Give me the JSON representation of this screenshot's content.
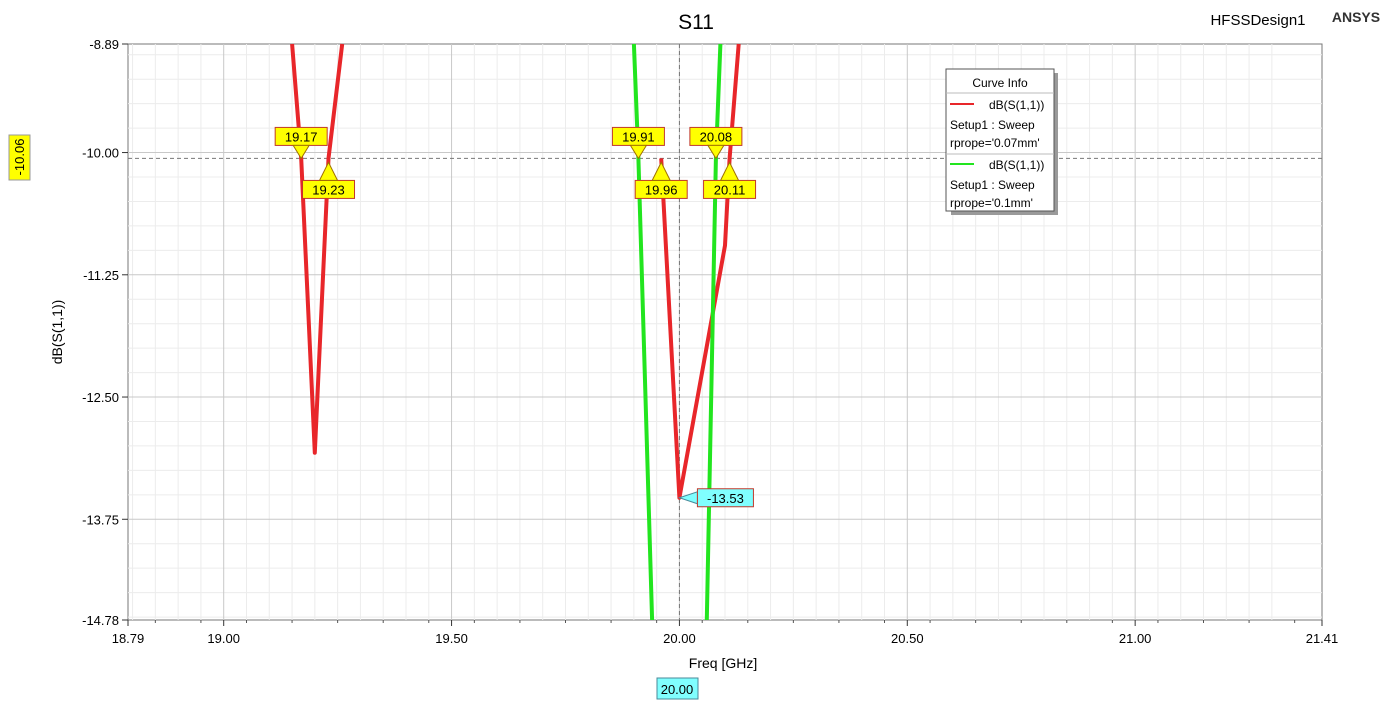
{
  "chart_data": {
    "type": "line",
    "title": "S11",
    "design_name": "HFSSDesign1",
    "brand": "ANSYS",
    "xlabel": "Freq [GHz]",
    "ylabel": "dB(S(1,1))",
    "xlim": [
      18.79,
      21.41
    ],
    "ylim": [
      -14.78,
      -8.89
    ],
    "x_ticks": [
      "18.79",
      "19.00",
      "19.50",
      "20.00",
      "20.50",
      "21.00",
      "21.41"
    ],
    "y_ticks": [
      "-8.89",
      "-10.00",
      "-11.25",
      "-12.50",
      "-13.75",
      "-14.78"
    ],
    "grid": true,
    "legend_title": "Curve Info",
    "legend_position": "top-right",
    "series": [
      {
        "name": "dB(S(1,1))",
        "legend_line2": "Setup1 : Sweep",
        "legend_line3": "rprope='0.07mm'",
        "color": "#e8262a",
        "x": [
          19.15,
          19.17,
          19.2,
          19.23,
          19.26,
          19.26,
          19.96,
          20.0,
          20.1,
          20.11,
          20.13
        ],
        "y": [
          -8.89,
          -10.06,
          -13.07,
          -10.06,
          -8.89,
          null,
          -10.06,
          -13.53,
          -10.95,
          -10.06,
          -8.89
        ]
      },
      {
        "name": "dB(S(1,1))",
        "legend_line2": "Setup1 : Sweep",
        "legend_line3": "rprope='0.1mm'",
        "color": "#22e51f",
        "x": [
          19.9,
          19.91,
          19.94,
          null,
          20.06,
          20.08,
          20.09
        ],
        "y": [
          -8.89,
          -10.06,
          -14.78,
          null,
          -14.78,
          -10.06,
          -8.89
        ]
      }
    ],
    "markers": [
      {
        "x": 19.17,
        "y": -10.06,
        "label": "19.17",
        "side": "above"
      },
      {
        "x": 19.23,
        "y": -10.06,
        "label": "19.23",
        "side": "below"
      },
      {
        "x": 19.91,
        "y": -10.06,
        "label": "19.91",
        "side": "above"
      },
      {
        "x": 19.96,
        "y": -10.06,
        "label": "19.96",
        "side": "below"
      },
      {
        "x": 20.08,
        "y": -10.06,
        "label": "20.08",
        "side": "above"
      },
      {
        "x": 20.11,
        "y": -10.06,
        "label": "20.11",
        "side": "below"
      }
    ],
    "min_marker": {
      "x": 20.0,
      "y": -13.53,
      "label": "-13.53"
    },
    "cursor_y": {
      "value": -10.06,
      "label": "-10.06"
    },
    "cursor_x": {
      "value": 20.0,
      "label": "20.00"
    }
  }
}
